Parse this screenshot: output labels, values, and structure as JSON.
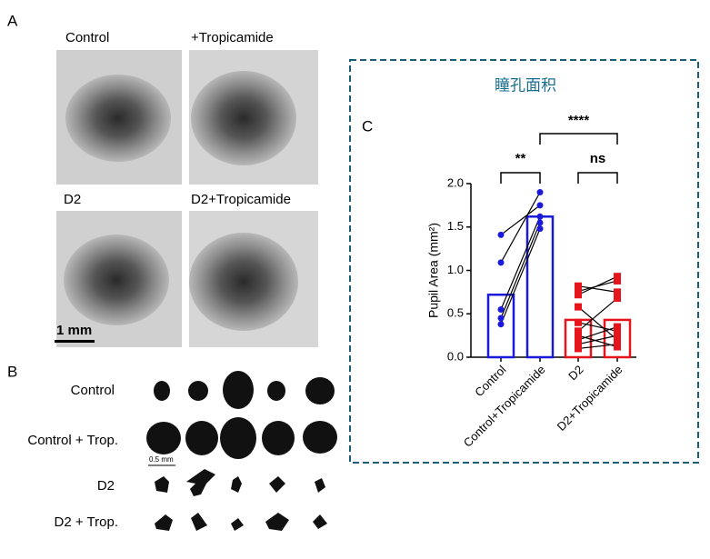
{
  "panel_a": {
    "label": "A",
    "photos": [
      "Control",
      "+Tropicamide",
      "D2",
      "D2+Tropicamide"
    ],
    "scale_bar": "1 mm"
  },
  "panel_b": {
    "label": "B",
    "rows": [
      "Control",
      "Control + Trop.",
      "D2",
      "D2 + Trop."
    ],
    "scale_bar": "0.5 mm"
  },
  "panel_c": {
    "label": "C",
    "box_title": "瞳孔面积"
  },
  "chart_data": {
    "type": "bar",
    "categories": [
      "Control",
      "Control+Tropicamide",
      "D2",
      "D2+Tropicamide"
    ],
    "values": [
      0.72,
      1.62,
      0.43,
      0.43
    ],
    "colors": [
      "#1a1adb",
      "#1a1adb",
      "#e8141c",
      "#e8141c"
    ],
    "individual_values": [
      [
        1.41,
        1.09,
        0.55,
        0.45,
        0.38
      ],
      [
        1.75,
        1.9,
        1.62,
        1.55,
        1.48
      ],
      [
        0.82,
        0.76,
        0.72,
        0.58,
        0.4,
        0.3,
        0.25,
        0.2,
        0.15,
        0.1
      ],
      [
        0.75,
        0.88,
        0.93,
        0.2,
        0.3,
        0.68,
        0.12,
        0.35,
        0.25,
        0.15
      ]
    ],
    "y_label": "Pupil Area (mm²)",
    "ylim": [
      0,
      2
    ],
    "yticks": [
      {
        "value": 0,
        "label": "0.0"
      },
      {
        "value": 0.5,
        "label": "0.5"
      },
      {
        "value": 1,
        "label": "1.0"
      },
      {
        "value": 1.5,
        "label": "1.5"
      },
      {
        "value": 2,
        "label": "2.0"
      }
    ],
    "annotations": [
      "**",
      "ns",
      "****"
    ]
  }
}
